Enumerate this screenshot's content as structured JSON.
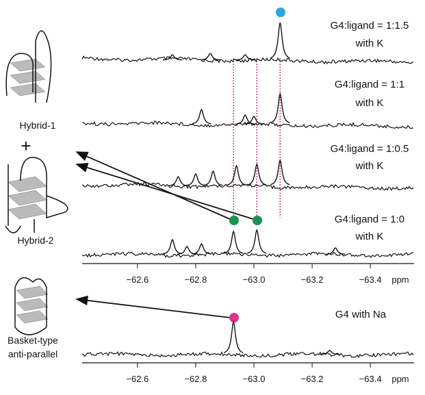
{
  "xlim": [
    -62.41,
    -63.55
  ],
  "xticks": [
    {
      "value": -62.6,
      "label": "−62.6"
    },
    {
      "value": -62.8,
      "label": "−62.8"
    },
    {
      "value": -63.0,
      "label": "−63.0"
    },
    {
      "value": -63.2,
      "label": "−63.2"
    },
    {
      "value": -63.4,
      "label": "−63.4"
    }
  ],
  "unit": "ppm",
  "guide_lines": [
    -62.93,
    -63.01,
    -63.09
  ],
  "spectra": [
    {
      "label": [
        "G4:ligand = 1:1.5",
        "with K"
      ],
      "peaks": [
        [
          -63.09,
          55
        ],
        [
          -62.72,
          8
        ],
        [
          -62.85,
          10
        ],
        [
          -62.97,
          8
        ]
      ]
    },
    {
      "label": [
        "G4:ligand = 1:1",
        "with K"
      ],
      "peaks": [
        [
          -63.09,
          45
        ],
        [
          -62.82,
          22
        ],
        [
          -62.97,
          14
        ],
        [
          -63.0,
          12
        ]
      ]
    },
    {
      "label": [
        "G4:ligand = 1:0.5",
        "with K"
      ],
      "peaks": [
        [
          -62.74,
          14
        ],
        [
          -62.8,
          18
        ],
        [
          -62.86,
          22
        ],
        [
          -62.94,
          30
        ],
        [
          -63.01,
          32
        ],
        [
          -63.09,
          38
        ]
      ]
    },
    {
      "label": [
        "G4:ligand = 1:0",
        "with K"
      ],
      "peaks": [
        [
          -62.72,
          22
        ],
        [
          -62.77,
          12
        ],
        [
          -62.82,
          16
        ],
        [
          -62.93,
          34
        ],
        [
          -63.01,
          36
        ],
        [
          -63.28,
          10
        ]
      ]
    },
    {
      "label": [
        "G4 with Na"
      ],
      "peaks": [
        [
          -62.93,
          48
        ],
        [
          -63.26,
          6
        ]
      ]
    }
  ],
  "structures": [
    "Hybrid-1",
    "+",
    "Hybrid-2",
    "Basket-type",
    "anti-parallel"
  ]
}
